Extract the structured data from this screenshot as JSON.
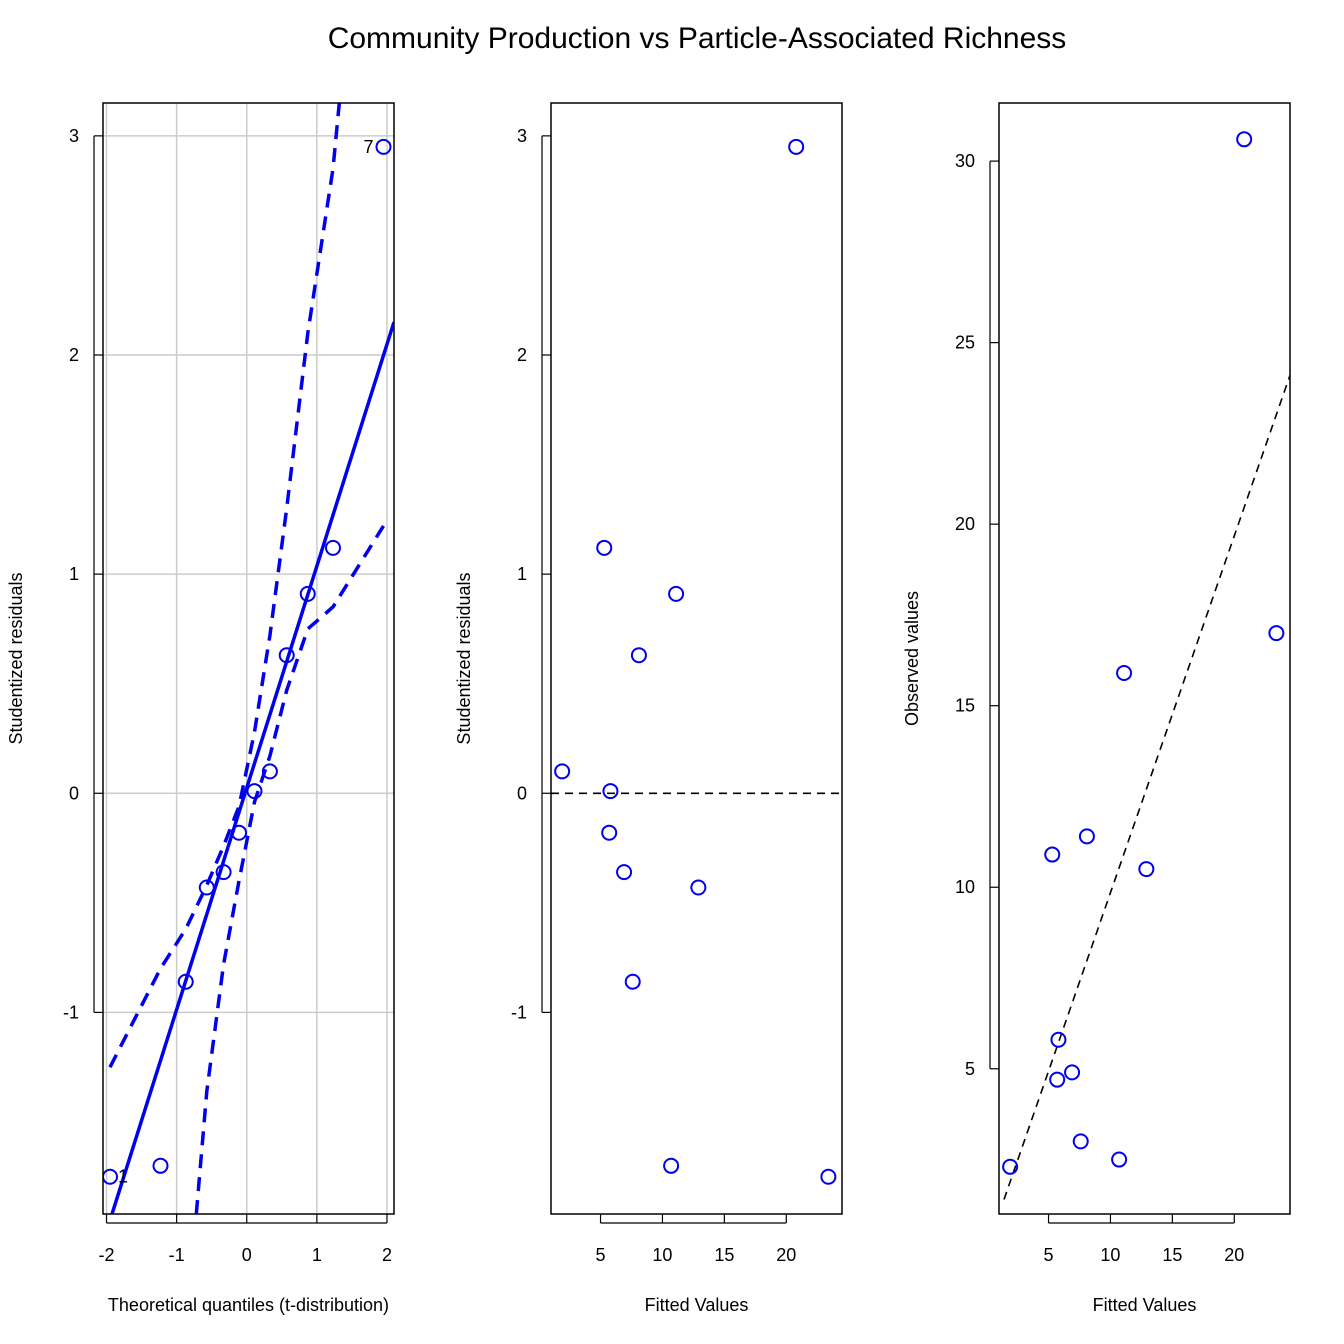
{
  "title": "Community Production vs Particle-Associated Richness",
  "colors": {
    "points": "#0000ee",
    "reference": "#000000",
    "grid": "#cccccc",
    "axes": "#000000"
  },
  "chart_data": [
    {
      "type": "scatter",
      "subtype": "qq-plot",
      "xlabel": "Theoretical quantiles (t-distribution)",
      "ylabel": "Studentized residuals",
      "xlim": [
        -2.05,
        2.1
      ],
      "ylim": [
        -1.92,
        3.15
      ],
      "xticks": [
        -2,
        -1,
        0,
        1,
        2
      ],
      "yticks": [
        -1,
        0,
        1,
        2,
        3
      ],
      "grid": true,
      "points": {
        "x": [
          -1.95,
          -1.23,
          -0.87,
          -0.57,
          -0.33,
          -0.11,
          0.11,
          0.33,
          0.57,
          0.87,
          1.23,
          1.95
        ],
        "y": [
          -1.75,
          -1.7,
          -0.86,
          -0.43,
          -0.36,
          -0.18,
          0.01,
          0.1,
          0.63,
          0.91,
          1.12,
          2.95
        ]
      },
      "point_labels": [
        {
          "text": "1",
          "x": -1.95,
          "y": -1.75
        },
        {
          "text": "7",
          "x": 1.95,
          "y": 2.95
        }
      ],
      "reference_line": {
        "x": [
          -2.05,
          2.1
        ],
        "y": [
          -2.05,
          2.15
        ]
      },
      "envelope_upper": {
        "x": [
          -1.95,
          -1.23,
          -0.87,
          -0.57,
          -0.33,
          -0.11,
          0.11,
          0.33,
          0.57,
          0.87,
          1.23,
          1.32
        ],
        "y": [
          -1.25,
          -0.8,
          -0.62,
          -0.42,
          -0.24,
          -0.06,
          0.28,
          0.72,
          1.3,
          2.1,
          2.85,
          3.15
        ]
      },
      "envelope_lower": {
        "x": [
          -0.72,
          -0.57,
          -0.33,
          -0.11,
          0.11,
          0.33,
          0.57,
          0.87,
          1.23,
          1.95
        ],
        "y": [
          -1.92,
          -1.36,
          -0.78,
          -0.4,
          -0.04,
          0.17,
          0.47,
          0.75,
          0.85,
          1.22
        ]
      }
    },
    {
      "type": "scatter",
      "subtype": "residuals-vs-fitted",
      "xlabel": "Fitted Values",
      "ylabel": "Studentized residuals",
      "xlim": [
        1.0,
        24.5
      ],
      "ylim": [
        -1.92,
        3.15
      ],
      "xticks": [
        5,
        10,
        15,
        20
      ],
      "yticks": [
        -1,
        0,
        1,
        2,
        3
      ],
      "grid": false,
      "points": {
        "x": [
          20.8,
          5.3,
          11.1,
          8.1,
          1.9,
          5.8,
          5.7,
          6.9,
          12.9,
          7.6,
          10.7,
          23.4
        ],
        "y": [
          2.95,
          1.12,
          0.91,
          0.63,
          0.1,
          0.01,
          -0.18,
          -0.36,
          -0.43,
          -0.86,
          -1.7,
          -1.75
        ]
      },
      "reference_line": {
        "x": [
          1.0,
          24.5
        ],
        "y": [
          0,
          0
        ]
      }
    },
    {
      "type": "scatter",
      "subtype": "observed-vs-fitted",
      "xlabel": "Fitted Values",
      "ylabel": "Observed values",
      "xlim": [
        1.0,
        24.5
      ],
      "ylim": [
        1.0,
        31.6
      ],
      "xticks": [
        5,
        10,
        15,
        20
      ],
      "yticks": [
        5,
        10,
        15,
        20,
        25,
        30
      ],
      "grid": false,
      "points": {
        "x": [
          20.8,
          23.4,
          11.1,
          8.1,
          12.9,
          5.3,
          5.8,
          5.7,
          6.9,
          7.6,
          10.7,
          1.9
        ],
        "y": [
          30.6,
          17.0,
          15.9,
          11.4,
          10.5,
          10.9,
          5.8,
          4.7,
          4.9,
          3.0,
          2.5,
          2.3
        ]
      },
      "reference_line": {
        "x": [
          1.4,
          24.5
        ],
        "y": [
          1.4,
          24.1
        ]
      }
    }
  ]
}
